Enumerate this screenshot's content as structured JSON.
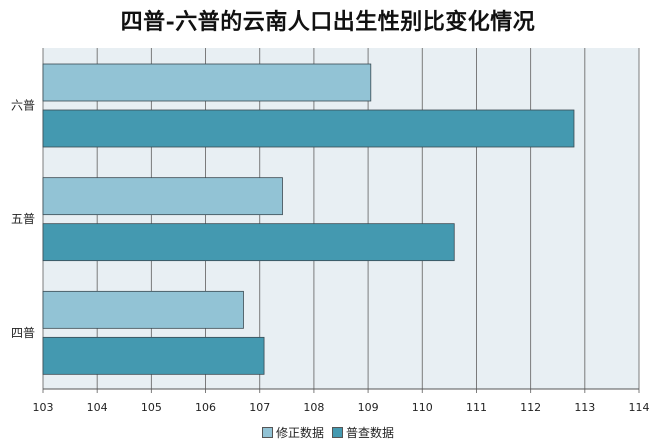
{
  "chart_data": {
    "type": "bar",
    "orientation": "horizontal",
    "title": "四普-六普的云南人口出生性别比变化情况",
    "categories": [
      "六普",
      "五普",
      "四普"
    ],
    "series": [
      {
        "name": "修正数据",
        "color": "#92c3d5",
        "values": [
          109.05,
          107.42,
          106.7
        ]
      },
      {
        "name": "普查数据",
        "color": "#4499b0",
        "values": [
          112.8,
          110.59,
          107.08
        ]
      }
    ],
    "xlim": [
      103,
      114
    ],
    "xticks": [
      "103",
      "104",
      "105",
      "106",
      "107",
      "108",
      "109",
      "110",
      "111",
      "112",
      "113",
      "114"
    ],
    "grid": true,
    "legend_position": "bottom",
    "plot_background": "#e8eff3"
  }
}
